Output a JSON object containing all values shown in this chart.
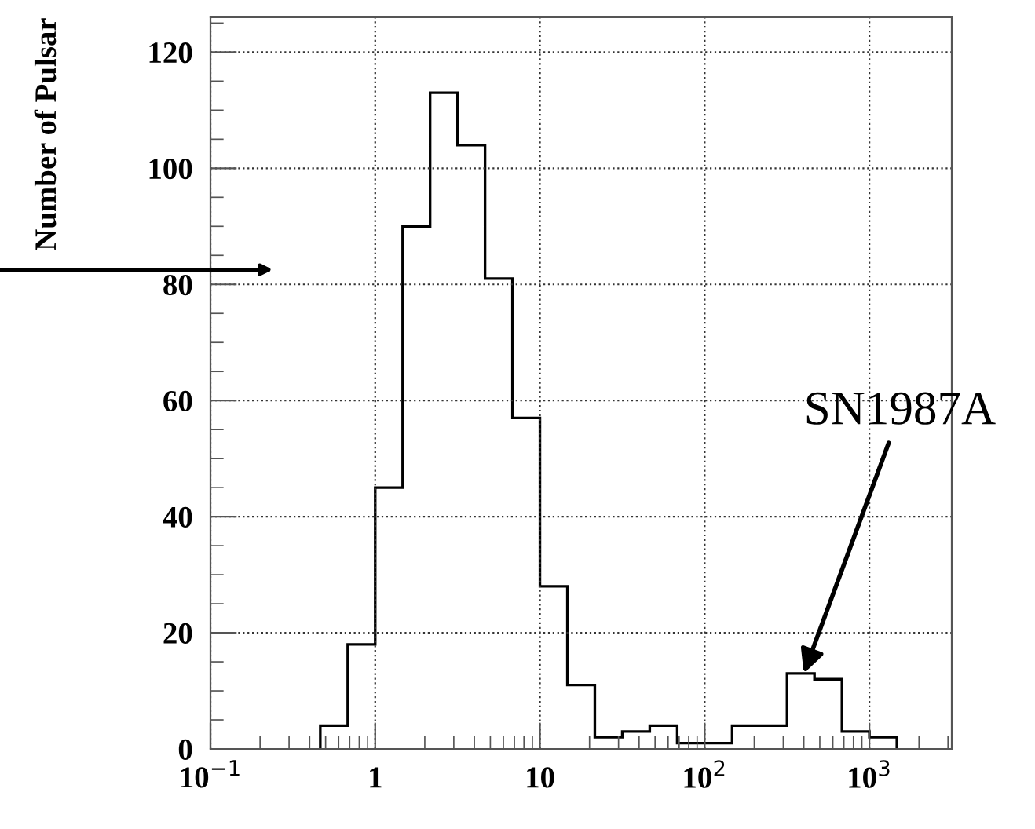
{
  "chart_data": {
    "type": "histogram",
    "ylabel": "Number of Pulsar",
    "bins": [
      0.4642,
      0.6813,
      1,
      1.468,
      2.154,
      3.162,
      4.642,
      6.813,
      10,
      14.68,
      21.54,
      31.62,
      46.42,
      68.13,
      100,
      146.8,
      215.4,
      316.2,
      464.2,
      681.3,
      1000,
      1468
    ],
    "values": [
      4,
      18,
      45,
      90,
      113,
      104,
      81,
      57,
      28,
      11,
      2,
      3,
      4,
      1,
      1,
      4,
      4,
      13,
      12,
      3,
      2
    ],
    "color": "#000000",
    "log": "x",
    "xlim": [
      0.1,
      3162
    ],
    "xticks": [
      {
        "value": 0.1,
        "label": "10$^{−1}$"
      },
      1,
      10,
      {
        "value": 100,
        "label": "10$^{2}$"
      },
      {
        "value": 1000,
        "label": "10$^{3}$"
      }
    ],
    "ylim": [
      0,
      126
    ],
    "yticks": [
      0,
      20,
      40,
      60,
      80,
      100,
      120
    ],
    "grid": true,
    "annotations": [
      {
        "text": "SN1987A",
        "x": 400,
        "y": 13
      }
    ]
  }
}
